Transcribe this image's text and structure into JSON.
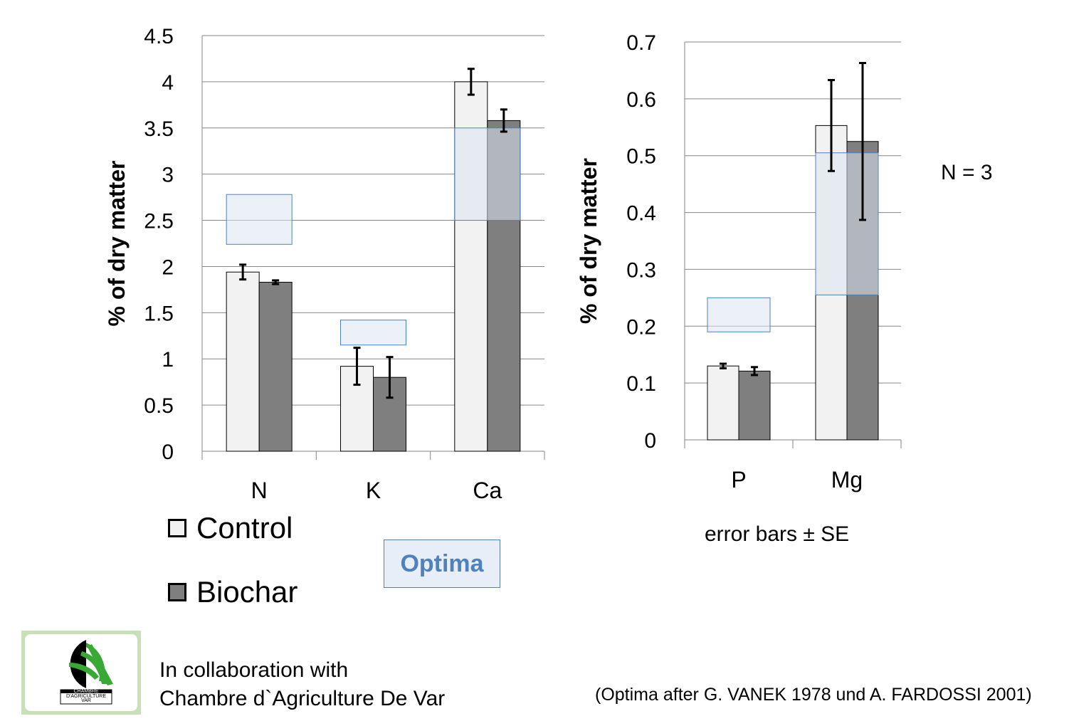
{
  "chart_data": [
    {
      "type": "bar",
      "categories": [
        "N",
        "K",
        "Ca"
      ],
      "ylabel": "% of dry matter",
      "ylim": [
        0,
        4.5
      ],
      "yticks": [
        "0",
        "0.5",
        "1",
        "1.5",
        "2",
        "2.5",
        "3",
        "3.5",
        "4",
        "4.5"
      ],
      "grid": true,
      "series": [
        {
          "name": "Control",
          "values": [
            1.94,
            0.92,
            4.0
          ],
          "errors": [
            0.08,
            0.2,
            0.14
          ]
        },
        {
          "name": "Biochar",
          "values": [
            1.83,
            0.8,
            3.58
          ],
          "errors": [
            0.02,
            0.22,
            0.12
          ]
        }
      ],
      "optima": [
        [
          2.24,
          2.78
        ],
        [
          1.15,
          1.42
        ],
        [
          2.5,
          3.5
        ]
      ]
    },
    {
      "type": "bar",
      "categories": [
        "P",
        "Mg"
      ],
      "ylabel": "% of dry matter",
      "ylim": [
        0,
        0.7
      ],
      "yticks": [
        "0",
        "0.1",
        "0.2",
        "0.3",
        "0.4",
        "0.5",
        "0.6",
        "0.7"
      ],
      "grid": true,
      "series": [
        {
          "name": "Control",
          "values": [
            0.13,
            0.553
          ],
          "errors": [
            0.004,
            0.08
          ]
        },
        {
          "name": "Biochar",
          "values": [
            0.121,
            0.525
          ],
          "errors": [
            0.007,
            0.138
          ]
        }
      ],
      "optima": [
        [
          0.19,
          0.25
        ],
        [
          0.255,
          0.505
        ]
      ]
    }
  ],
  "legend": {
    "items": [
      {
        "label": "Control",
        "color": "#f2f2f2"
      },
      {
        "label": "Biochar",
        "color": "#7f7f7f"
      }
    ]
  },
  "optima_label": "Optima",
  "notes": {
    "n": "N = 3",
    "error_bars": "error bars ± SE"
  },
  "logo": {
    "text_line1": "CHAMBRE",
    "text_line2": "D'AGRICULTURE",
    "text_line3": "VAR"
  },
  "footer": {
    "collab_line1": "In collaboration with",
    "collab_line2": "Chambre d`Agriculture De Var",
    "optima_ref": "(Optima after G. VANEK 1978 und A. FARDOSSI 2001)"
  },
  "colors": {
    "control": "#f2f2f2",
    "biochar": "#7f7f7f",
    "optima_fill": "#dce6f2",
    "optima_stroke": "#4f81bd",
    "grid": "#868686"
  }
}
